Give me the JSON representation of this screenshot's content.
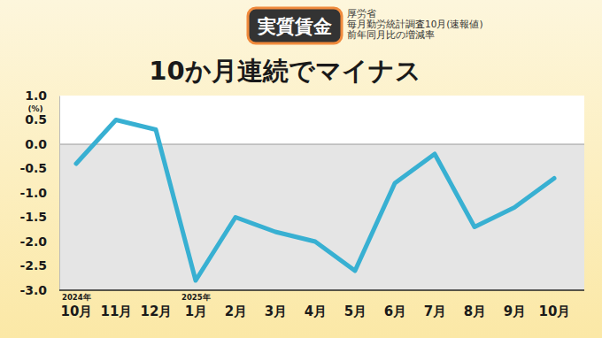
{
  "chart_data": {
    "type": "line",
    "title": "10か月連続でマイナス",
    "badge": "実質賃金",
    "source": [
      "厚労省",
      "毎月勤労統計調査10月(速報値)",
      "前年同月比の増減率"
    ],
    "y_unit_label": "(%)",
    "categories": [
      "10月",
      "11月",
      "12月",
      "1月",
      "2月",
      "3月",
      "4月",
      "5月",
      "6月",
      "7月",
      "8月",
      "9月",
      "10月"
    ],
    "year_labels": [
      {
        "index": 0,
        "label": "2024年"
      },
      {
        "index": 3,
        "label": "2025年"
      }
    ],
    "values": [
      -0.4,
      0.5,
      0.3,
      -2.8,
      -1.5,
      -1.8,
      -2.0,
      -2.6,
      -0.8,
      -0.2,
      -1.7,
      -1.3,
      -0.7
    ],
    "color": "#38b0d2",
    "ylim": [
      -3,
      1
    ],
    "yticks": [
      {
        "value": 1,
        "label": "1.0"
      },
      0.5,
      {
        "value": 0,
        "label": "0.0"
      },
      -0.5,
      {
        "value": -1,
        "label": "-1.0"
      },
      -1.5,
      {
        "value": -2,
        "label": "-2.0"
      },
      -2.5,
      {
        "value": -3,
        "label": "-3.0"
      }
    ]
  }
}
